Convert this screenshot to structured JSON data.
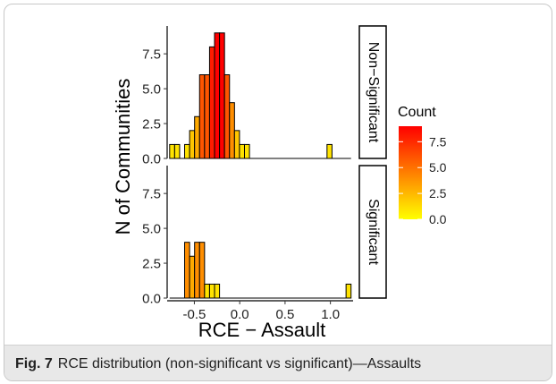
{
  "caption": {
    "label": "Fig. 7",
    "text": "RCE distribution (non-significant vs significant)—Assaults"
  },
  "chart_data": {
    "type": "bar",
    "subtype": "faceted-histogram",
    "xlabel": "RCE − Assault",
    "ylabel": "N of Communities",
    "xlim": [
      -0.8,
      1.25
    ],
    "ylim": [
      0,
      9.5
    ],
    "x_ticks": [
      -0.5,
      0.0,
      0.5,
      1.0
    ],
    "x_tick_labels": [
      "-0.5",
      "0.0",
      "0.5",
      "1.0"
    ],
    "y_ticks": [
      0,
      2.5,
      5,
      7.5
    ],
    "y_tick_labels": [
      "0.0",
      "2.5",
      "5.0",
      "7.5"
    ],
    "bin_width": 0.055,
    "facets": [
      {
        "name": "Non−Significant",
        "bins": [
          {
            "x": -0.745,
            "count": 1
          },
          {
            "x": -0.69,
            "count": 1
          },
          {
            "x": -0.58,
            "count": 1
          },
          {
            "x": -0.525,
            "count": 2
          },
          {
            "x": -0.47,
            "count": 3
          },
          {
            "x": -0.415,
            "count": 6
          },
          {
            "x": -0.36,
            "count": 6
          },
          {
            "x": -0.305,
            "count": 8
          },
          {
            "x": -0.25,
            "count": 9
          },
          {
            "x": -0.195,
            "count": 9
          },
          {
            "x": -0.14,
            "count": 6
          },
          {
            "x": -0.085,
            "count": 4
          },
          {
            "x": -0.03,
            "count": 2
          },
          {
            "x": 0.025,
            "count": 1
          },
          {
            "x": 0.08,
            "count": 1
          },
          {
            "x": 0.99,
            "count": 1
          }
        ]
      },
      {
        "name": "Significant",
        "bins": [
          {
            "x": -0.58,
            "count": 4
          },
          {
            "x": -0.525,
            "count": 3
          },
          {
            "x": -0.47,
            "count": 4
          },
          {
            "x": -0.415,
            "count": 4
          },
          {
            "x": -0.36,
            "count": 1
          },
          {
            "x": -0.305,
            "count": 1
          },
          {
            "x": -0.25,
            "count": 1
          },
          {
            "x": 1.2,
            "count": 1
          }
        ]
      }
    ],
    "legend": {
      "title": "Count",
      "placement": "right",
      "ticks": [
        7.5,
        5.0,
        2.5,
        0.0
      ],
      "tick_labels": [
        "7.5",
        "5.0",
        "2.5",
        "0.0"
      ],
      "range": [
        0,
        9
      ],
      "low_color": "#ffff00",
      "high_color": "#ff0000"
    },
    "grid": false
  }
}
